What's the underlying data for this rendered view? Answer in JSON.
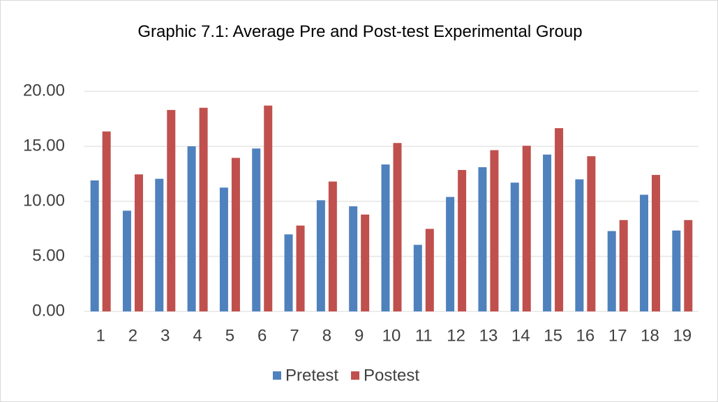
{
  "chart_data": {
    "type": "bar",
    "title": "Graphic 7.1:  Average Pre and Post-test Experimental Group",
    "categories": [
      "1",
      "2",
      "3",
      "4",
      "5",
      "6",
      "7",
      "8",
      "9",
      "10",
      "11",
      "12",
      "13",
      "14",
      "15",
      "16",
      "17",
      "18",
      "19"
    ],
    "series": [
      {
        "name": "Pretest",
        "color": "#4f81bd",
        "values": [
          11.9,
          9.15,
          12.05,
          15.0,
          11.25,
          14.8,
          7.0,
          10.1,
          9.55,
          13.35,
          6.05,
          10.4,
          13.1,
          11.7,
          14.25,
          12.0,
          7.3,
          10.6,
          7.35
        ]
      },
      {
        "name": "Postest",
        "color": "#c0504d",
        "values": [
          16.35,
          12.45,
          18.3,
          18.5,
          13.95,
          18.7,
          7.8,
          11.8,
          8.8,
          15.3,
          7.5,
          12.85,
          14.65,
          15.05,
          16.65,
          14.1,
          8.3,
          12.4,
          8.3
        ]
      }
    ],
    "ylim": [
      0,
      20
    ],
    "yticks": [
      {
        "value": 0,
        "label": "0.00"
      },
      {
        "value": 5,
        "label": "5.00"
      },
      {
        "value": 10,
        "label": "10.00"
      },
      {
        "value": 15,
        "label": "15.00"
      },
      {
        "value": 20,
        "label": "20.00"
      }
    ],
    "grid": true,
    "legend": "bottom"
  }
}
